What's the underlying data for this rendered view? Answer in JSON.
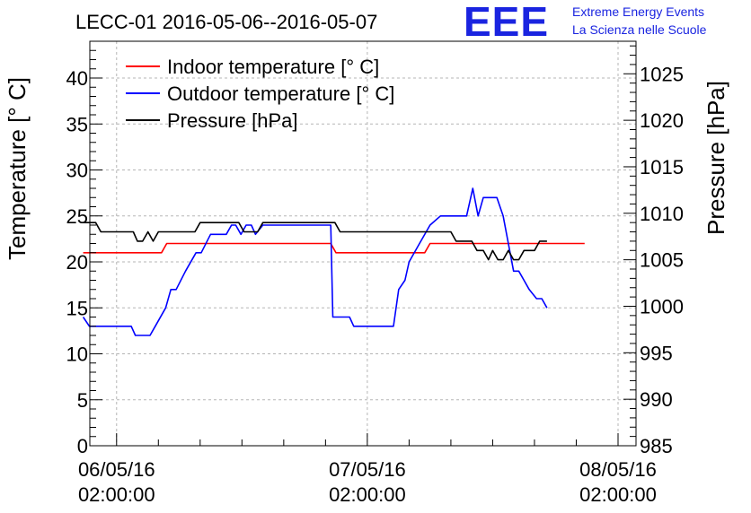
{
  "chart_data": {
    "type": "line",
    "title": "LECC-01 2016-05-06--2016-05-07",
    "logo": {
      "mark": "EEE",
      "line1": "Extreme Energy Events",
      "line2": "La Scienza nelle Scuole"
    },
    "ylabel_left": "Temperature [° C]",
    "ylabel_right": "Pressure [hPa]",
    "ylim_left": [
      0,
      44
    ],
    "ylim_right": [
      985,
      1028.5
    ],
    "yticks_left": [
      0,
      5,
      10,
      15,
      20,
      25,
      30,
      35,
      40
    ],
    "yticks_right": [
      985,
      990,
      995,
      1000,
      1005,
      1010,
      1015,
      1020,
      1025
    ],
    "xlim": [
      -2.56,
      49.72
    ],
    "xticks": [
      {
        "x": 0,
        "line1": "06/05/16",
        "line2": "02:00:00"
      },
      {
        "x": 24,
        "line1": "07/05/16",
        "line2": "02:00:00"
      },
      {
        "x": 48,
        "line1": "08/05/16",
        "line2": "02:00:00"
      }
    ],
    "grid": true,
    "legend_position": "top-left",
    "series": [
      {
        "name": "Indoor temperature [° C]",
        "axis": "left",
        "color": "#ff0000",
        "points": [
          [
            -3.2,
            21
          ],
          [
            4.3,
            21
          ],
          [
            4.8,
            22
          ],
          [
            20.5,
            22
          ],
          [
            21.0,
            21
          ],
          [
            29.5,
            21
          ],
          [
            30.0,
            22
          ],
          [
            44.8,
            22
          ]
        ]
      },
      {
        "name": "Outdoor temperature [° C]",
        "axis": "left",
        "color": "#0000ff",
        "points": [
          [
            -3.2,
            14
          ],
          [
            -2.6,
            13
          ],
          [
            1.4,
            13
          ],
          [
            1.8,
            12
          ],
          [
            3.2,
            12
          ],
          [
            3.7,
            13
          ],
          [
            4.7,
            15
          ],
          [
            5.2,
            17
          ],
          [
            5.7,
            17
          ],
          [
            6.6,
            19
          ],
          [
            7.6,
            21
          ],
          [
            8.1,
            21
          ],
          [
            9.0,
            23
          ],
          [
            10.5,
            23
          ],
          [
            11.0,
            24
          ],
          [
            11.4,
            24
          ],
          [
            11.9,
            23
          ],
          [
            12.4,
            24
          ],
          [
            12.9,
            24
          ],
          [
            13.3,
            23
          ],
          [
            14.0,
            24
          ],
          [
            16.0,
            24
          ],
          [
            20.5,
            24
          ],
          [
            20.7,
            14
          ],
          [
            22.3,
            14
          ],
          [
            22.7,
            13
          ],
          [
            26.5,
            13
          ],
          [
            27.0,
            17
          ],
          [
            27.6,
            18
          ],
          [
            28.0,
            20
          ],
          [
            29.0,
            22
          ],
          [
            30.0,
            24
          ],
          [
            31.0,
            25
          ],
          [
            33.5,
            25
          ],
          [
            34.1,
            28
          ],
          [
            34.6,
            25
          ],
          [
            35.1,
            27
          ],
          [
            36.4,
            27
          ],
          [
            37.0,
            25
          ],
          [
            37.5,
            22
          ],
          [
            38.0,
            19
          ],
          [
            38.5,
            19
          ],
          [
            39.0,
            18
          ],
          [
            39.5,
            17
          ],
          [
            40.2,
            16
          ],
          [
            40.7,
            16
          ],
          [
            41.2,
            15
          ]
        ]
      },
      {
        "name": "Pressure [hPa]",
        "axis": "right",
        "color": "#000000",
        "points": [
          [
            -3.2,
            1009
          ],
          [
            -2.0,
            1009
          ],
          [
            -1.5,
            1008
          ],
          [
            1.6,
            1008
          ],
          [
            2.0,
            1007
          ],
          [
            2.5,
            1007
          ],
          [
            3.0,
            1008
          ],
          [
            3.5,
            1007
          ],
          [
            4.0,
            1008
          ],
          [
            7.5,
            1008
          ],
          [
            8.0,
            1009
          ],
          [
            11.7,
            1009
          ],
          [
            12.2,
            1008
          ],
          [
            13.5,
            1008
          ],
          [
            14.0,
            1009
          ],
          [
            20.9,
            1009
          ],
          [
            21.4,
            1008
          ],
          [
            32.0,
            1008
          ],
          [
            32.5,
            1007
          ],
          [
            34.0,
            1007
          ],
          [
            34.5,
            1006
          ],
          [
            35.1,
            1006
          ],
          [
            35.6,
            1005
          ],
          [
            36.0,
            1006
          ],
          [
            36.5,
            1005
          ],
          [
            37.0,
            1005
          ],
          [
            37.5,
            1006
          ],
          [
            38.0,
            1005
          ],
          [
            38.5,
            1005
          ],
          [
            39.0,
            1006
          ],
          [
            40.0,
            1006
          ],
          [
            40.5,
            1007
          ],
          [
            41.2,
            1007
          ]
        ]
      }
    ]
  }
}
